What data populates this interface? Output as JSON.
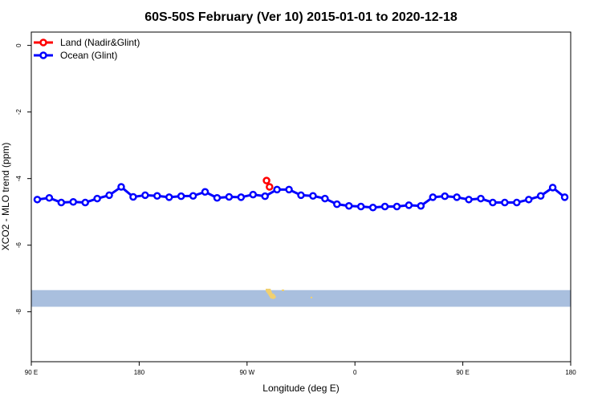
{
  "chart_data": {
    "type": "line",
    "title": "60S-50S February (Ver 10)   2015-01-01 to 2020-12-18",
    "xlabel": "Longitude (deg E)",
    "ylabel": "XCO2 - MLO trend (ppm)",
    "xlim": [
      90,
      450
    ],
    "ylim": [
      -9.5,
      0.4
    ],
    "x_ticks": [
      {
        "value": 90,
        "label": "90 E"
      },
      {
        "value": 162,
        "label": "180"
      },
      {
        "value": 234,
        "label": "90 W"
      },
      {
        "value": 306,
        "label": "0"
      },
      {
        "value": 378,
        "label": "90 E"
      },
      {
        "value": 450,
        "label": "180"
      }
    ],
    "y_ticks": [
      0,
      -2,
      -4,
      -6,
      -8
    ],
    "legend_position": "top-left",
    "series": [
      {
        "name": "Land (Nadir&Glint)",
        "color": "#ff0000",
        "x": [
          247,
          249
        ],
        "y": [
          -4.06,
          -4.25
        ]
      },
      {
        "name": "Ocean (Glint)",
        "color": "#0000ff",
        "x": [
          94,
          102,
          110,
          118,
          126,
          134,
          142,
          150,
          158,
          166,
          174,
          182,
          190,
          198,
          206,
          214,
          222,
          230,
          238,
          246,
          254,
          262,
          270,
          278,
          286,
          294,
          302,
          310,
          318,
          326,
          334,
          342,
          350,
          358,
          366,
          374,
          382,
          390,
          398,
          406,
          414,
          422,
          430,
          438,
          446
        ],
        "y": [
          -4.63,
          -4.58,
          -4.72,
          -4.7,
          -4.72,
          -4.6,
          -4.5,
          -4.25,
          -4.55,
          -4.5,
          -4.52,
          -4.56,
          -4.53,
          -4.52,
          -4.4,
          -4.58,
          -4.55,
          -4.56,
          -4.48,
          -4.53,
          -4.33,
          -4.33,
          -4.5,
          -4.52,
          -4.6,
          -4.77,
          -4.82,
          -4.84,
          -4.87,
          -4.84,
          -4.84,
          -4.8,
          -4.82,
          -4.56,
          -4.53,
          -4.56,
          -4.63,
          -4.6,
          -4.72,
          -4.72,
          -4.72,
          -4.63,
          -4.52,
          -4.27,
          -4.56
        ]
      }
    ]
  },
  "map_strip": {
    "ocean_color": "#a9bfde",
    "land_color": "#f0d070",
    "y_range": [
      -7.35,
      -7.85
    ]
  }
}
